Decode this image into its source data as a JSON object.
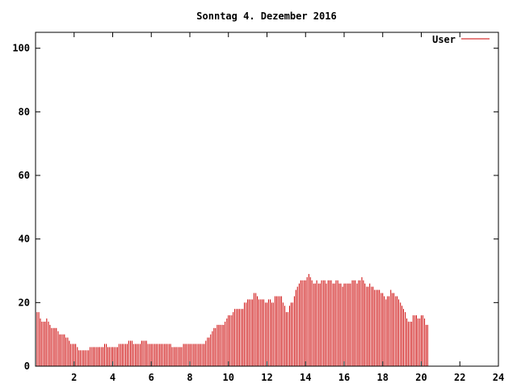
{
  "chart_data": {
    "type": "bar",
    "title": "Sonntag 4. Dezember 2016",
    "xlabel": "",
    "ylabel": "",
    "xlim": [
      0,
      24
    ],
    "ylim": [
      0,
      105
    ],
    "xticks": [
      "2",
      "4",
      "6",
      "8",
      "10",
      "12",
      "14",
      "16",
      "18",
      "20",
      "22",
      "24"
    ],
    "yticks": [
      "0",
      "20",
      "40",
      "60",
      "80",
      "100"
    ],
    "grid": false,
    "legend_position": "top-right",
    "series": [
      {
        "name": "User",
        "color": "#cc0000",
        "points": [
          [
            0.08,
            17
          ],
          [
            0.17,
            17
          ],
          [
            0.25,
            15
          ],
          [
            0.33,
            14
          ],
          [
            0.42,
            14
          ],
          [
            0.5,
            14
          ],
          [
            0.58,
            15
          ],
          [
            0.67,
            14
          ],
          [
            0.75,
            13
          ],
          [
            0.83,
            12
          ],
          [
            0.92,
            12
          ],
          [
            1.0,
            12
          ],
          [
            1.08,
            12
          ],
          [
            1.17,
            11
          ],
          [
            1.25,
            10
          ],
          [
            1.33,
            10
          ],
          [
            1.42,
            10
          ],
          [
            1.5,
            10
          ],
          [
            1.58,
            9
          ],
          [
            1.67,
            9
          ],
          [
            1.75,
            8
          ],
          [
            1.83,
            7
          ],
          [
            1.92,
            7
          ],
          [
            2.0,
            7
          ],
          [
            2.08,
            7
          ],
          [
            2.17,
            6
          ],
          [
            2.25,
            5
          ],
          [
            2.33,
            5
          ],
          [
            2.42,
            5
          ],
          [
            2.5,
            5
          ],
          [
            2.58,
            5
          ],
          [
            2.67,
            5
          ],
          [
            2.75,
            5
          ],
          [
            2.83,
            6
          ],
          [
            2.92,
            6
          ],
          [
            3.0,
            6
          ],
          [
            3.08,
            6
          ],
          [
            3.17,
            6
          ],
          [
            3.25,
            6
          ],
          [
            3.33,
            6
          ],
          [
            3.42,
            6
          ],
          [
            3.5,
            6
          ],
          [
            3.58,
            7
          ],
          [
            3.67,
            7
          ],
          [
            3.75,
            6
          ],
          [
            3.83,
            6
          ],
          [
            3.92,
            6
          ],
          [
            4.0,
            6
          ],
          [
            4.08,
            6
          ],
          [
            4.17,
            6
          ],
          [
            4.25,
            6
          ],
          [
            4.33,
            7
          ],
          [
            4.42,
            7
          ],
          [
            4.5,
            7
          ],
          [
            4.58,
            7
          ],
          [
            4.67,
            7
          ],
          [
            4.75,
            7
          ],
          [
            4.83,
            8
          ],
          [
            4.92,
            8
          ],
          [
            5.0,
            8
          ],
          [
            5.08,
            7
          ],
          [
            5.17,
            7
          ],
          [
            5.25,
            7
          ],
          [
            5.33,
            7
          ],
          [
            5.42,
            7
          ],
          [
            5.5,
            8
          ],
          [
            5.58,
            8
          ],
          [
            5.67,
            8
          ],
          [
            5.75,
            8
          ],
          [
            5.83,
            7
          ],
          [
            5.92,
            7
          ],
          [
            6.0,
            7
          ],
          [
            6.08,
            7
          ],
          [
            6.17,
            7
          ],
          [
            6.25,
            7
          ],
          [
            6.33,
            7
          ],
          [
            6.42,
            7
          ],
          [
            6.5,
            7
          ],
          [
            6.58,
            7
          ],
          [
            6.67,
            7
          ],
          [
            6.75,
            7
          ],
          [
            6.83,
            7
          ],
          [
            6.92,
            7
          ],
          [
            7.0,
            7
          ],
          [
            7.08,
            6
          ],
          [
            7.17,
            6
          ],
          [
            7.25,
            6
          ],
          [
            7.33,
            6
          ],
          [
            7.42,
            6
          ],
          [
            7.5,
            6
          ],
          [
            7.58,
            6
          ],
          [
            7.67,
            7
          ],
          [
            7.75,
            7
          ],
          [
            7.83,
            7
          ],
          [
            7.92,
            7
          ],
          [
            8.0,
            7
          ],
          [
            8.08,
            7
          ],
          [
            8.17,
            7
          ],
          [
            8.25,
            7
          ],
          [
            8.33,
            7
          ],
          [
            8.42,
            7
          ],
          [
            8.5,
            7
          ],
          [
            8.58,
            7
          ],
          [
            8.67,
            7
          ],
          [
            8.75,
            7
          ],
          [
            8.83,
            8
          ],
          [
            8.92,
            9
          ],
          [
            9.0,
            9
          ],
          [
            9.08,
            10
          ],
          [
            9.17,
            11
          ],
          [
            9.25,
            12
          ],
          [
            9.33,
            12
          ],
          [
            9.42,
            13
          ],
          [
            9.5,
            13
          ],
          [
            9.58,
            13
          ],
          [
            9.67,
            13
          ],
          [
            9.75,
            13
          ],
          [
            9.83,
            14
          ],
          [
            9.92,
            15
          ],
          [
            10.0,
            16
          ],
          [
            10.08,
            16
          ],
          [
            10.17,
            16
          ],
          [
            10.25,
            17
          ],
          [
            10.33,
            18
          ],
          [
            10.42,
            18
          ],
          [
            10.5,
            18
          ],
          [
            10.58,
            18
          ],
          [
            10.67,
            18
          ],
          [
            10.75,
            18
          ],
          [
            10.83,
            20
          ],
          [
            10.92,
            20
          ],
          [
            11.0,
            21
          ],
          [
            11.08,
            21
          ],
          [
            11.17,
            21
          ],
          [
            11.25,
            21
          ],
          [
            11.33,
            23
          ],
          [
            11.42,
            23
          ],
          [
            11.5,
            22
          ],
          [
            11.58,
            21
          ],
          [
            11.67,
            21
          ],
          [
            11.75,
            21
          ],
          [
            11.83,
            21
          ],
          [
            11.92,
            20
          ],
          [
            12.0,
            20
          ],
          [
            12.08,
            21
          ],
          [
            12.17,
            21
          ],
          [
            12.25,
            20
          ],
          [
            12.33,
            20
          ],
          [
            12.42,
            22
          ],
          [
            12.5,
            22
          ],
          [
            12.58,
            22
          ],
          [
            12.67,
            22
          ],
          [
            12.75,
            22
          ],
          [
            12.83,
            20
          ],
          [
            12.92,
            19
          ],
          [
            13.0,
            17
          ],
          [
            13.08,
            17
          ],
          [
            13.17,
            19
          ],
          [
            13.25,
            20
          ],
          [
            13.33,
            20
          ],
          [
            13.42,
            22
          ],
          [
            13.5,
            24
          ],
          [
            13.58,
            25
          ],
          [
            13.67,
            26
          ],
          [
            13.75,
            27
          ],
          [
            13.83,
            27
          ],
          [
            13.92,
            27
          ],
          [
            14.0,
            27
          ],
          [
            14.08,
            28
          ],
          [
            14.17,
            29
          ],
          [
            14.25,
            28
          ],
          [
            14.33,
            27
          ],
          [
            14.42,
            26
          ],
          [
            14.5,
            26
          ],
          [
            14.58,
            27
          ],
          [
            14.67,
            26
          ],
          [
            14.75,
            26
          ],
          [
            14.83,
            27
          ],
          [
            14.92,
            27
          ],
          [
            15.0,
            27
          ],
          [
            15.08,
            26
          ],
          [
            15.17,
            27
          ],
          [
            15.25,
            27
          ],
          [
            15.33,
            27
          ],
          [
            15.42,
            26
          ],
          [
            15.5,
            26
          ],
          [
            15.58,
            27
          ],
          [
            15.67,
            27
          ],
          [
            15.75,
            26
          ],
          [
            15.83,
            26
          ],
          [
            15.92,
            25
          ],
          [
            16.0,
            26
          ],
          [
            16.08,
            26
          ],
          [
            16.17,
            26
          ],
          [
            16.25,
            26
          ],
          [
            16.33,
            26
          ],
          [
            16.42,
            27
          ],
          [
            16.5,
            27
          ],
          [
            16.58,
            27
          ],
          [
            16.67,
            26
          ],
          [
            16.75,
            27
          ],
          [
            16.83,
            27
          ],
          [
            16.92,
            28
          ],
          [
            17.0,
            27
          ],
          [
            17.08,
            26
          ],
          [
            17.17,
            25
          ],
          [
            17.25,
            25
          ],
          [
            17.33,
            26
          ],
          [
            17.42,
            25
          ],
          [
            17.5,
            25
          ],
          [
            17.58,
            24
          ],
          [
            17.67,
            24
          ],
          [
            17.75,
            24
          ],
          [
            17.83,
            24
          ],
          [
            17.92,
            23
          ],
          [
            18.0,
            23
          ],
          [
            18.08,
            22
          ],
          [
            18.17,
            21
          ],
          [
            18.25,
            22
          ],
          [
            18.33,
            22
          ],
          [
            18.42,
            24
          ],
          [
            18.5,
            23
          ],
          [
            18.58,
            23
          ],
          [
            18.67,
            22
          ],
          [
            18.75,
            22
          ],
          [
            18.83,
            21
          ],
          [
            18.92,
            20
          ],
          [
            19.0,
            19
          ],
          [
            19.08,
            18
          ],
          [
            19.17,
            17
          ],
          [
            19.25,
            15
          ],
          [
            19.33,
            14
          ],
          [
            19.42,
            14
          ],
          [
            19.5,
            14
          ],
          [
            19.58,
            16
          ],
          [
            19.67,
            16
          ],
          [
            19.75,
            16
          ],
          [
            19.83,
            15
          ],
          [
            19.92,
            15
          ],
          [
            20.0,
            16
          ],
          [
            20.08,
            16
          ],
          [
            20.17,
            15
          ],
          [
            20.25,
            13
          ],
          [
            20.33,
            13
          ]
        ]
      }
    ]
  }
}
